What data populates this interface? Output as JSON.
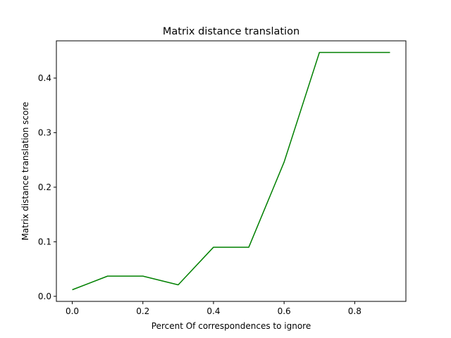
{
  "chart_data": {
    "type": "line",
    "title": "Matrix distance translation",
    "xlabel": "Percent Of correspondences to ignore",
    "ylabel": "Matrix distance translation score",
    "xlim": [
      -0.045,
      0.945
    ],
    "ylim": [
      -0.0093,
      0.4683
    ],
    "xticks": [
      0.0,
      0.2,
      0.4,
      0.6,
      0.8
    ],
    "xtick_labels": [
      "0.0",
      "0.2",
      "0.4",
      "0.6",
      "0.8"
    ],
    "yticks": [
      0.0,
      0.1,
      0.2,
      0.3,
      0.4
    ],
    "ytick_labels": [
      "0.0",
      "0.1",
      "0.2",
      "0.3",
      "0.4"
    ],
    "grid": false,
    "series": [
      {
        "color": "#008000",
        "x": [
          0.0,
          0.1,
          0.2,
          0.3,
          0.4,
          0.5,
          0.6,
          0.7,
          0.8,
          0.9
        ],
        "y": [
          0.012,
          0.037,
          0.037,
          0.021,
          0.09,
          0.09,
          0.246,
          0.447,
          0.447,
          0.447
        ]
      }
    ]
  }
}
